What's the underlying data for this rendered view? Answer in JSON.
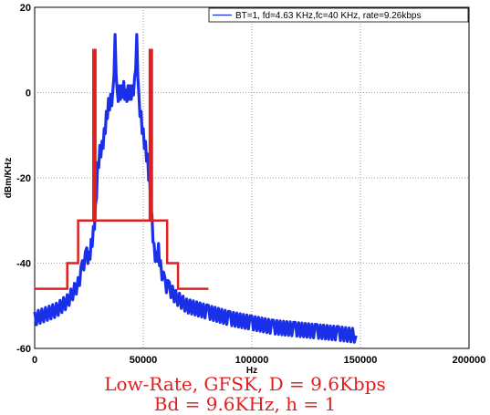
{
  "chart_data": {
    "type": "line",
    "xlabel": "Hz",
    "ylabel": "dBm/KHz",
    "xlim": [
      0,
      200000
    ],
    "ylim": [
      -60,
      20
    ],
    "x_ticks": [
      "0",
      "50000",
      "100000",
      "150000",
      "200000"
    ],
    "y_ticks": [
      "20",
      "0",
      "-20",
      "-40",
      "-60"
    ],
    "grid": true,
    "legend_position": "top-right",
    "series": [
      {
        "name": "BT=1, fd=4.63 KHz,fc=40 KHz, rate=9.26kbps",
        "color": "#1a2fe8",
        "x": [
          0,
          5000,
          10000,
          15000,
          20000,
          22000,
          24000,
          25000,
          26000,
          27000,
          28000,
          29000,
          30000,
          31000,
          32000,
          33000,
          34000,
          35000,
          36000,
          37000,
          38000,
          39000,
          40000,
          41000,
          42000,
          43000,
          44000,
          45000,
          46000,
          47000,
          48000,
          49000,
          50000,
          51000,
          52000,
          53000,
          54000,
          55000,
          56000,
          57000,
          58000,
          60000,
          62000,
          65000,
          70000,
          80000,
          90000,
          100000,
          110000,
          120000,
          130000,
          140000,
          148000
        ],
        "y": [
          -53,
          -52,
          -51,
          -49,
          -45,
          -41,
          -38,
          -39,
          -36,
          -33,
          -28,
          -18,
          -14,
          -13,
          -10,
          -6,
          -3,
          -2,
          -1,
          12,
          -1,
          0,
          0,
          1,
          -1,
          0,
          0,
          0,
          2,
          12,
          -2,
          -6,
          -10,
          -13,
          -16,
          -22,
          -30,
          -37,
          -39,
          -37,
          -41,
          -45,
          -46,
          -48,
          -50,
          -51.5,
          -53,
          -54,
          -55,
          -55.5,
          -56,
          -56.5,
          -57
        ]
      }
    ],
    "mask": {
      "name": "spectral mask",
      "color": "#e02020",
      "x": [
        0,
        15000,
        15000,
        20000,
        20000,
        27000,
        27000,
        28000,
        28000,
        53000,
        53000,
        54000,
        54000,
        61000,
        61000,
        66000,
        66000,
        80000
      ],
      "y": [
        -46,
        -46,
        -40,
        -40,
        -30,
        -30,
        10,
        10,
        -30,
        -30,
        10,
        10,
        -30,
        -30,
        -40,
        -40,
        -46,
        -46
      ]
    }
  },
  "caption": {
    "line1": "Low-Rate, GFSK, D = 9.6Kbps",
    "line2": "Bd = 9.6KHz, h = 1"
  }
}
